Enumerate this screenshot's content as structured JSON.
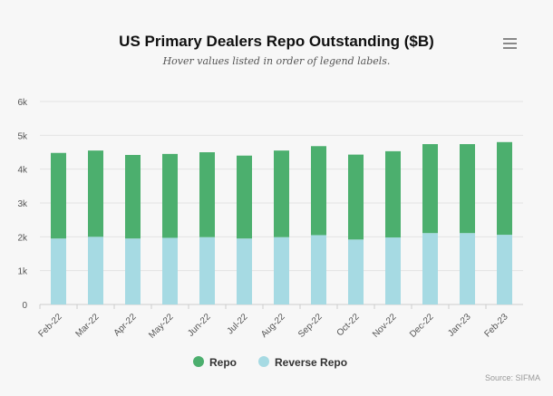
{
  "chart_data": {
    "type": "bar",
    "stacked": true,
    "title": "US Primary Dealers Repo Outstanding ($B)",
    "subtitle": "Hover values listed in order of legend labels.",
    "categories": [
      "Feb-22",
      "Mar-22",
      "Apr-22",
      "May-22",
      "Jun-22",
      "Jul-22",
      "Aug-22",
      "Sep-22",
      "Oct-22",
      "Nov-22",
      "Dec-22",
      "Jan-23",
      "Feb-23"
    ],
    "series": [
      {
        "name": "Repo",
        "color": "#4caf6e",
        "values": [
          2530,
          2550,
          2470,
          2480,
          2510,
          2450,
          2560,
          2630,
          2510,
          2550,
          2630,
          2630,
          2740
        ]
      },
      {
        "name": "Reverse Repo",
        "color": "#a6dae3",
        "values": [
          1950,
          2000,
          1950,
          1970,
          1990,
          1950,
          1990,
          2050,
          1920,
          1980,
          2110,
          2110,
          2060
        ]
      }
    ],
    "ylim": [
      0,
      6000
    ],
    "yticks": [
      "0",
      "1k",
      "2k",
      "3k",
      "4k",
      "5k",
      "6k"
    ],
    "grid": true,
    "legend": "bottom",
    "source": "Source: SIFMA"
  },
  "menu_icon": "hamburger-menu-icon"
}
